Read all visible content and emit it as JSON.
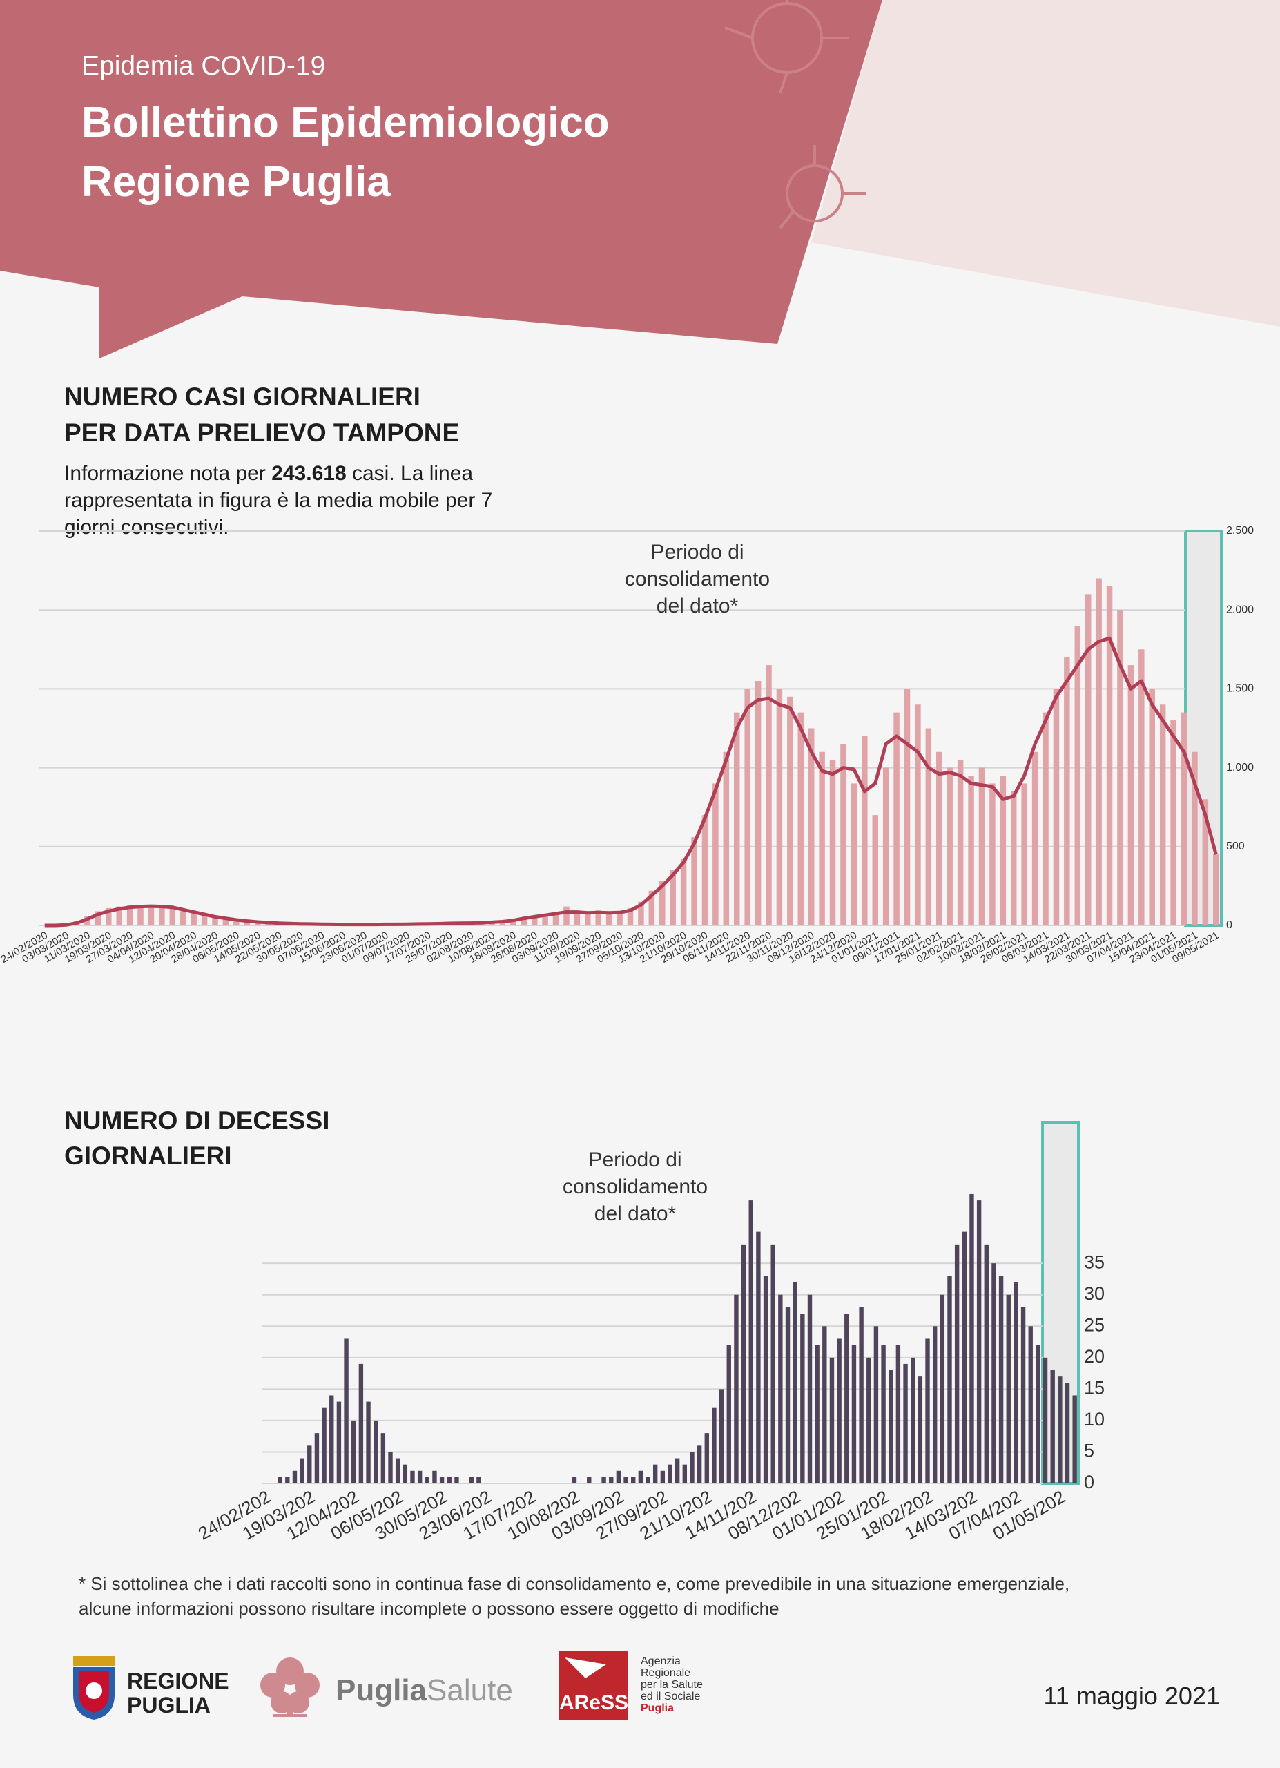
{
  "header": {
    "kicker": "Epidemia COVID-19",
    "title": [
      "Bollettino Epidemiologico",
      "Regione Puglia"
    ]
  },
  "chart_data": [
    {
      "type": "bar",
      "title": [
        "NUMERO CASI GIORNALIERI",
        "PER DATA PRELIEVO TAMPONE"
      ],
      "description": {
        "intro": "Informazione nota per",
        "count": "243.618",
        "lines": [
          "casi. La linea",
          "rappresentata in figura è la media mobile per 7",
          "giorni consecutivi."
        ]
      },
      "annotation": [
        "Periodo di",
        "consolidamento",
        "del dato*"
      ],
      "categories": [
        "24/02/2020",
        null,
        "03/03/2020",
        null,
        "11/03/2020",
        null,
        "19/03/2020",
        null,
        "27/03/2020",
        null,
        "04/04/2020",
        null,
        "12/04/2020",
        null,
        "20/04/2020",
        null,
        "28/04/2020",
        null,
        "06/05/2020",
        null,
        "14/05/2020",
        null,
        "22/05/2020",
        null,
        "30/05/2020",
        null,
        "07/06/2020",
        null,
        "15/06/2020",
        null,
        "23/06/2020",
        null,
        "01/07/2020",
        null,
        "09/07/2020",
        null,
        "17/07/2020",
        null,
        "25/07/2020",
        null,
        "02/08/2020",
        null,
        "10/08/2020",
        null,
        "18/08/2020",
        null,
        "26/08/2020",
        null,
        "03/09/2020",
        null,
        "11/09/2020",
        null,
        "19/09/2020",
        null,
        "27/09/2020",
        null,
        "05/10/2020",
        null,
        "13/10/2020",
        null,
        "21/10/2020",
        null,
        "29/10/2020",
        null,
        "06/11/2020",
        null,
        "14/11/2020",
        null,
        "22/11/2020",
        null,
        "30/11/2020",
        null,
        "08/12/2020",
        null,
        "16/12/2020",
        null,
        "24/12/2020",
        null,
        "01/01/2021",
        null,
        "09/01/2021",
        null,
        "17/01/2021",
        null,
        "25/01/2021",
        null,
        "02/02/2021",
        null,
        "10/02/2021",
        null,
        "18/02/2021",
        null,
        "26/02/2021",
        null,
        "06/03/2021",
        null,
        "14/03/2021",
        null,
        "22/03/2021",
        null,
        "30/03/2021",
        null,
        "07/04/2021",
        null,
        "15/04/2021",
        null,
        "23/04/2021",
        null,
        "01/05/2021",
        null,
        "09/05/2021"
      ],
      "series": [
        {
          "type": "bar",
          "color": "#dfa3a8",
          "values": [
            0,
            2,
            5,
            30,
            60,
            90,
            110,
            120,
            130,
            125,
            120,
            130,
            110,
            90,
            80,
            60,
            50,
            40,
            30,
            25,
            20,
            15,
            12,
            10,
            8,
            8,
            6,
            6,
            5,
            5,
            5,
            6,
            6,
            7,
            8,
            8,
            10,
            12,
            14,
            15,
            15,
            18,
            20,
            25,
            35,
            50,
            60,
            70,
            80,
            120,
            90,
            85,
            95,
            80,
            90,
            110,
            150,
            220,
            280,
            350,
            420,
            560,
            700,
            900,
            1100,
            1350,
            1500,
            1550,
            1650,
            1500,
            1450,
            1350,
            1250,
            1100,
            1050,
            1150,
            900,
            1200,
            700,
            1000,
            1350,
            1500,
            1400,
            1250,
            1100,
            1000,
            1050,
            950,
            1000,
            900,
            950,
            850,
            900,
            1100,
            1350,
            1500,
            1700,
            1900,
            2100,
            2200,
            2150,
            2000,
            1650,
            1750,
            1500,
            1400,
            1300,
            1350,
            1100,
            800,
            450
          ]
        },
        {
          "type": "line",
          "color": "#b03f55",
          "values": [
            0,
            0,
            3,
            15,
            40,
            70,
            90,
            105,
            115,
            120,
            122,
            120,
            115,
            100,
            85,
            70,
            55,
            45,
            35,
            28,
            22,
            18,
            14,
            12,
            10,
            9,
            8,
            7,
            6,
            6,
            6,
            6,
            7,
            7,
            8,
            9,
            10,
            11,
            13,
            14,
            15,
            17,
            20,
            24,
            32,
            45,
            55,
            65,
            75,
            85,
            85,
            80,
            82,
            80,
            82,
            95,
            130,
            190,
            250,
            320,
            400,
            520,
            680,
            860,
            1050,
            1250,
            1380,
            1430,
            1440,
            1400,
            1380,
            1250,
            1100,
            980,
            960,
            1000,
            990,
            850,
            900,
            1150,
            1200,
            1150,
            1100,
            1000,
            960,
            970,
            950,
            900,
            890,
            880,
            800,
            820,
            950,
            1150,
            1300,
            1450,
            1550,
            1650,
            1750,
            1800,
            1820,
            1650,
            1500,
            1550,
            1400,
            1300,
            1200,
            1100,
            900,
            700,
            450
          ]
        }
      ],
      "ylim": [
        0,
        2500
      ],
      "yticks": [
        0,
        500,
        {
          "value": 1000,
          "label": "1.000"
        },
        {
          "value": 1500,
          "label": "1.500"
        },
        {
          "value": 2000,
          "label": "2.000"
        },
        {
          "value": 2500,
          "label": "2.500"
        }
      ],
      "grid": true
    },
    {
      "type": "bar",
      "title": [
        "NUMERO DI DECESSI",
        "GIORNALIERI"
      ],
      "annotation": [
        "Periodo di",
        "consolidamento",
        "del dato*"
      ],
      "categories": [
        "24/02/202",
        null,
        null,
        null,
        null,
        null,
        "19/03/202",
        null,
        null,
        null,
        null,
        null,
        "12/04/202",
        null,
        null,
        null,
        null,
        null,
        "06/05/202",
        null,
        null,
        null,
        null,
        null,
        "30/05/202",
        null,
        null,
        null,
        null,
        null,
        "23/06/202",
        null,
        null,
        null,
        null,
        null,
        "17/07/202",
        null,
        null,
        null,
        null,
        null,
        "10/08/202",
        null,
        null,
        null,
        null,
        null,
        "03/09/202",
        null,
        null,
        null,
        null,
        null,
        "27/09/202",
        null,
        null,
        null,
        null,
        null,
        "21/10/202",
        null,
        null,
        null,
        null,
        null,
        "14/11/202",
        null,
        null,
        null,
        null,
        null,
        "08/12/202",
        null,
        null,
        null,
        null,
        null,
        "01/01/202",
        null,
        null,
        null,
        null,
        null,
        "25/01/202",
        null,
        null,
        null,
        null,
        null,
        "18/02/202",
        null,
        null,
        null,
        null,
        null,
        "14/03/202",
        null,
        null,
        null,
        null,
        null,
        "07/04/202",
        null,
        null,
        null,
        null,
        null,
        "01/05/202",
        null,
        null
      ],
      "series": [
        {
          "type": "bar",
          "color": "#4f4459",
          "values": [
            0,
            0,
            1,
            1,
            2,
            4,
            6,
            8,
            12,
            14,
            13,
            23,
            10,
            19,
            13,
            10,
            8,
            5,
            4,
            3,
            2,
            2,
            1,
            2,
            1,
            1,
            1,
            0,
            1,
            1,
            0,
            0,
            0,
            0,
            0,
            0,
            0,
            0,
            0,
            0,
            0,
            0,
            1,
            0,
            1,
            0,
            1,
            1,
            2,
            1,
            1,
            2,
            1,
            3,
            2,
            3,
            4,
            3,
            5,
            6,
            8,
            12,
            15,
            22,
            30,
            38,
            45,
            40,
            33,
            38,
            30,
            28,
            32,
            27,
            30,
            22,
            25,
            20,
            23,
            27,
            22,
            28,
            20,
            25,
            22,
            18,
            22,
            19,
            20,
            17,
            23,
            25,
            30,
            33,
            38,
            40,
            46,
            45,
            38,
            35,
            33,
            30,
            32,
            28,
            25,
            22,
            20,
            18,
            17,
            16,
            14
          ]
        }
      ],
      "ylim": [
        0,
        55
      ],
      "yticks": [
        0,
        5,
        10,
        15,
        20,
        25,
        30,
        35
      ],
      "grid": true
    }
  ],
  "footnote": [
    "* Si sottolinea che i dati raccolti sono in continua fase di consolidamento e, come prevedibile in una situazione emergenziale,",
    "alcune informazioni possono risultare incomplete o possono essere oggetto di modifiche"
  ],
  "logos": {
    "regione": [
      "REGIONE",
      "PUGLIA"
    ],
    "puglia_salute": [
      "Puglia",
      "Salute"
    ],
    "aress": "AReSS",
    "aress_text": [
      "Agenzia",
      "Regionale",
      "per la Salute",
      "ed il Sociale",
      "Puglia"
    ]
  },
  "date": "11 maggio 2021"
}
